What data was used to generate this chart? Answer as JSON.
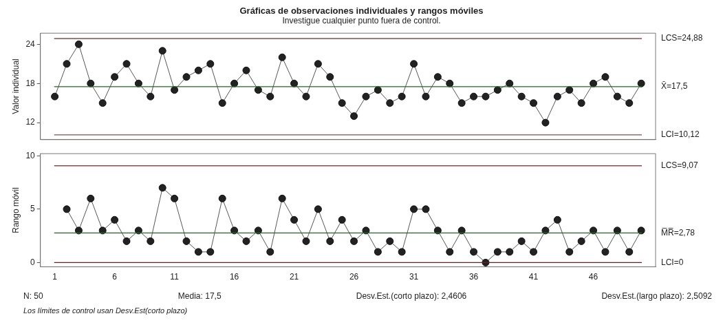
{
  "chart_data": [
    {
      "type": "line",
      "title": "Gráficas de observaciones individuales y rangos móviles",
      "subtitle": "Investigue cualquier punto fuera de control.",
      "ylabel": "Valor individual",
      "x": [
        1,
        2,
        3,
        4,
        5,
        6,
        7,
        8,
        9,
        10,
        11,
        12,
        13,
        14,
        15,
        16,
        17,
        18,
        19,
        20,
        21,
        22,
        23,
        24,
        25,
        26,
        27,
        28,
        29,
        30,
        31,
        32,
        33,
        34,
        35,
        36,
        37,
        38,
        39,
        40,
        41,
        42,
        43,
        44,
        45,
        46,
        47,
        48,
        49,
        50
      ],
      "series": [
        {
          "color": "#555555",
          "values": [
            16,
            21,
            24,
            18,
            15,
            19,
            21,
            18,
            16,
            23,
            17,
            19,
            20,
            21,
            15,
            18,
            20,
            17,
            16,
            22,
            18,
            16,
            21,
            19,
            15,
            13,
            16,
            17,
            15,
            16,
            21,
            16,
            19,
            18,
            15,
            16,
            16,
            17,
            18,
            16,
            15,
            12,
            16,
            17,
            15,
            18,
            19,
            16,
            15,
            18
          ]
        }
      ],
      "xlim": [
        -0.2,
        51.2
      ],
      "xticks": [
        1,
        6,
        11,
        16,
        21,
        26,
        31,
        36,
        41,
        46
      ],
      "ylim": [
        9.4,
        25.7
      ],
      "yticks": [
        12,
        18,
        24
      ],
      "tick_labels": "y",
      "grid": false,
      "legend": false,
      "marker": "circle",
      "line_style": "solid",
      "ref_lines": [
        {
          "axis": "y",
          "value": 24.88,
          "label": "LCS=24,88",
          "color": "#8b4a4a"
        },
        {
          "axis": "y",
          "value": 17.5,
          "label": "X̄=17,5",
          "color": "#1e6b1e"
        },
        {
          "axis": "y",
          "value": 10.12,
          "label": "LCI=10,12",
          "color": "#8b4a4a"
        }
      ]
    },
    {
      "type": "line",
      "ylabel": "Rango móvil",
      "series": [
        {
          "color": "#555555",
          "x": [
            2,
            3,
            4,
            5,
            6,
            7,
            8,
            9,
            10,
            11,
            12,
            13,
            14,
            15,
            16,
            17,
            18,
            19,
            20,
            21,
            22,
            23,
            24,
            25,
            26,
            27,
            28,
            29,
            30,
            31,
            32,
            33,
            34,
            35,
            36,
            37,
            38,
            39,
            40,
            41,
            42,
            43,
            44,
            45,
            46,
            47,
            48,
            49,
            50
          ],
          "values": [
            5,
            3,
            6,
            3,
            4,
            2,
            3,
            2,
            7,
            6,
            2,
            1,
            1,
            6,
            3,
            2,
            3,
            1,
            6,
            4,
            2,
            5,
            2,
            4,
            2,
            3,
            1,
            2,
            1,
            5,
            5,
            3,
            1,
            3,
            1,
            0,
            1,
            1,
            2,
            1,
            3,
            4,
            1,
            2,
            3,
            1,
            3,
            1,
            3
          ]
        }
      ],
      "xlim": [
        -0.2,
        51.2
      ],
      "xticks": [
        1,
        6,
        11,
        16,
        21,
        26,
        31,
        36,
        41,
        46
      ],
      "ylim": [
        -0.4,
        10.2
      ],
      "yticks": [
        0,
        5,
        10
      ],
      "grid": false,
      "legend": false,
      "marker": "circle",
      "line_style": "solid",
      "ref_lines": [
        {
          "axis": "y",
          "value": 9.07,
          "label": "LCS=9,07",
          "color": "#8b4a4a"
        },
        {
          "axis": "y",
          "value": 2.78,
          "label": "M̅R̅=2,78",
          "color": "#1e6b1e"
        },
        {
          "axis": "y",
          "value": 0,
          "label": "LCI=0",
          "color": "#6b1e1e"
        }
      ],
      "annotations": [
        "N: 50",
        "Media: 17,5",
        "Desv.Est.(corto plazo): 2,4606",
        "Desv.Est.(largo plazo): 2,5092",
        "Los límites de control usan Desv.Est(corto plazo)"
      ]
    }
  ]
}
